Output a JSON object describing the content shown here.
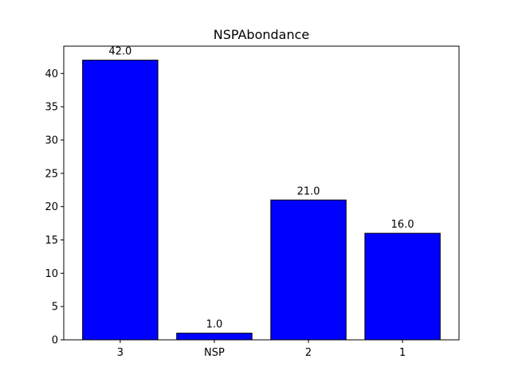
{
  "chart_data": {
    "type": "bar",
    "title": "NSPAbondance",
    "xlabel": "",
    "ylabel": "",
    "categories": [
      "3",
      "NSP",
      "2",
      "1"
    ],
    "values": [
      42.0,
      1.0,
      21.0,
      16.0
    ],
    "value_labels": [
      "42.0",
      "1.0",
      "21.0",
      "16.0"
    ],
    "ylim": [
      0,
      44.1
    ],
    "yticks": [
      0,
      5,
      10,
      15,
      20,
      25,
      30,
      35,
      40
    ],
    "ytick_labels": [
      "0",
      "5",
      "10",
      "15",
      "20",
      "25",
      "30",
      "35",
      "40"
    ],
    "grid": false,
    "bar_color": "#0000ff",
    "edge_color": "#000000"
  }
}
